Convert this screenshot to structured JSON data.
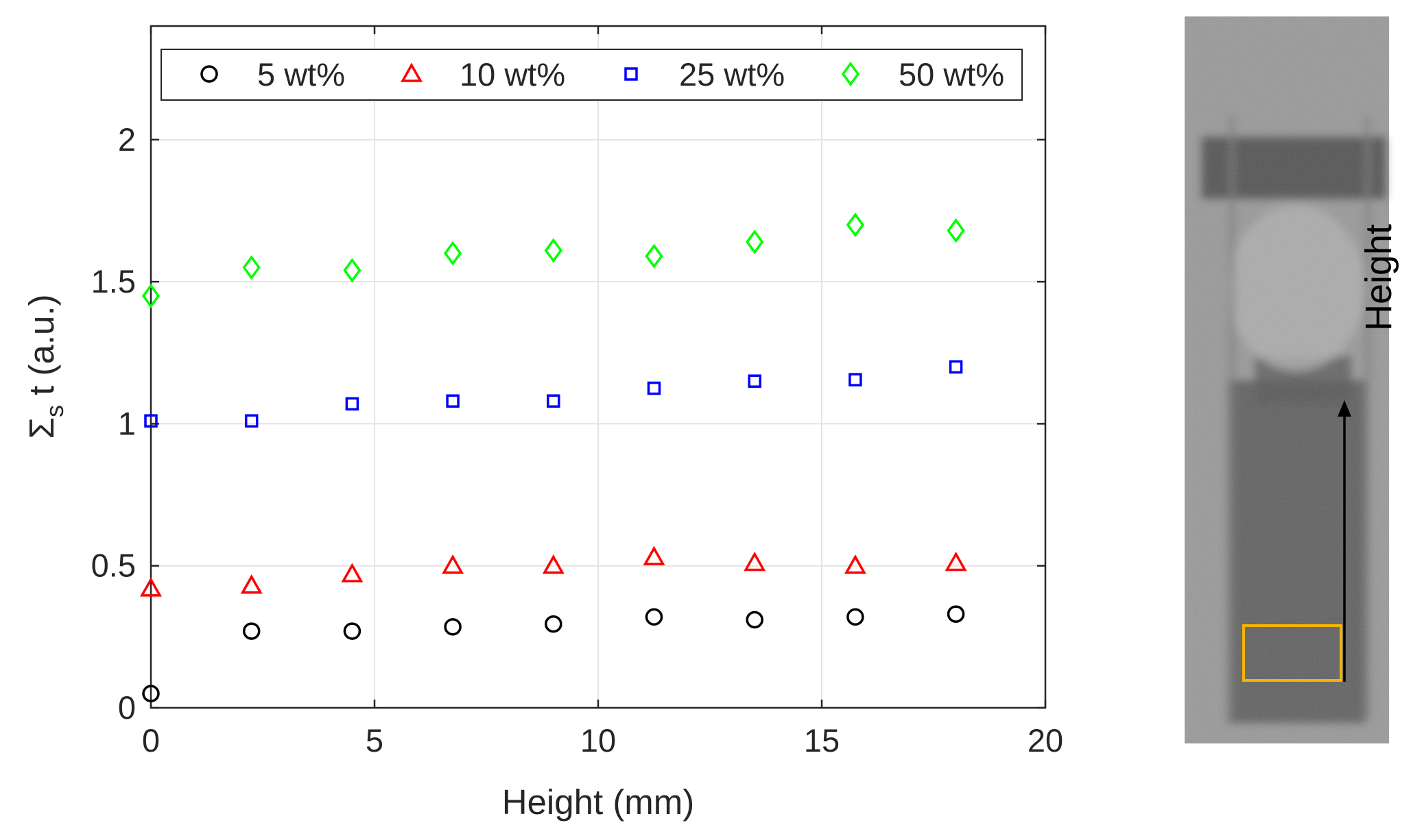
{
  "chart_data": {
    "type": "scatter",
    "xlabel": "Height (mm)",
    "ylabel": {
      "main": "Σ",
      "sub": "s",
      "rest": " t (a.u.)"
    },
    "xlim": [
      0,
      20
    ],
    "ylim": [
      0,
      2.4
    ],
    "xticks": [
      0,
      5,
      10,
      15,
      20
    ],
    "yticks": [
      0,
      0.5,
      1,
      1.5,
      2
    ],
    "xtick_labels": [
      "0",
      "5",
      "10",
      "15",
      "20"
    ],
    "ytick_labels": [
      "0",
      "0.5",
      "1",
      "1.5",
      "2"
    ],
    "grid": true,
    "legend_position": "top",
    "legend_orientation": "horizontal",
    "x": [
      0,
      2.25,
      4.5,
      6.75,
      9,
      11.25,
      13.5,
      15.75,
      18
    ],
    "series": [
      {
        "name": "5 wt%",
        "marker": "circle",
        "color": "#000000",
        "values": [
          0.05,
          0.27,
          0.27,
          0.285,
          0.295,
          0.32,
          0.31,
          0.32,
          0.33
        ]
      },
      {
        "name": "10 wt%",
        "marker": "triangle",
        "color": "#ff0000",
        "values": [
          0.42,
          0.43,
          0.47,
          0.5,
          0.5,
          0.53,
          0.51,
          0.5,
          0.51
        ]
      },
      {
        "name": "25 wt%",
        "marker": "square",
        "color": "#0000ff",
        "values": [
          1.01,
          1.01,
          1.07,
          1.08,
          1.08,
          1.125,
          1.15,
          1.155,
          1.2
        ]
      },
      {
        "name": "50 wt%",
        "marker": "diamond",
        "color": "#00ff00",
        "values": [
          1.45,
          1.55,
          1.54,
          1.6,
          1.61,
          1.59,
          1.64,
          1.7,
          1.68
        ]
      }
    ]
  },
  "image": {
    "arrow_label": "Height",
    "roi_color": "#f5b400",
    "arrow_color": "#000000"
  }
}
